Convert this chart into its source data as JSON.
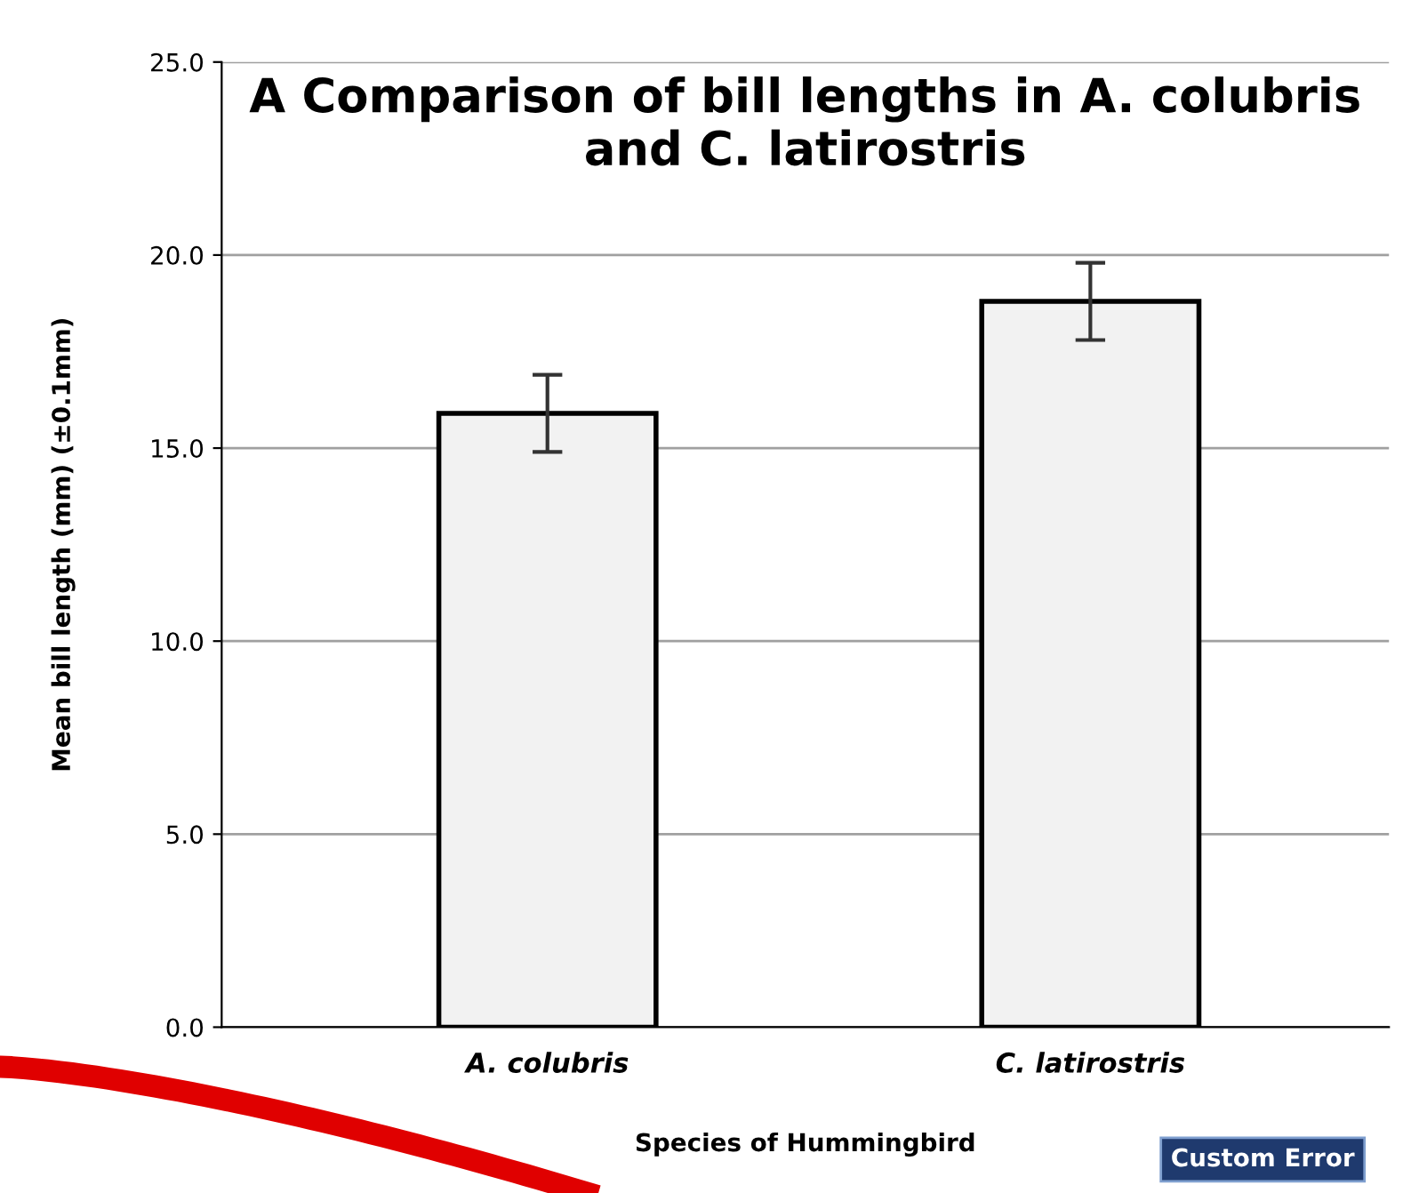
{
  "chart_data": {
    "type": "bar",
    "title": "A Comparison of bill lengths in A. colubris and C. latirostris",
    "xlabel": "Species of Hummingbird",
    "ylabel": "Mean bill length (mm) (±0.1mm)",
    "categories": [
      "A. colubris",
      "C. latirostris"
    ],
    "series": [
      {
        "color": "#f2f2f2",
        "values": [
          15.9,
          18.8
        ],
        "errors": [
          1,
          1
        ]
      }
    ],
    "ylim": [
      0,
      25
    ],
    "yticks": [
      {
        "value": 0,
        "label": "0.0"
      },
      {
        "value": 5,
        "label": "5.0"
      },
      {
        "value": 10,
        "label": "10.0"
      },
      {
        "value": 15,
        "label": "15.0"
      },
      {
        "value": 20,
        "label": "20.0"
      },
      {
        "value": 25,
        "label": "25.0"
      }
    ],
    "grid": "y",
    "legend": false,
    "annotations": [
      "Custom Error"
    ]
  }
}
